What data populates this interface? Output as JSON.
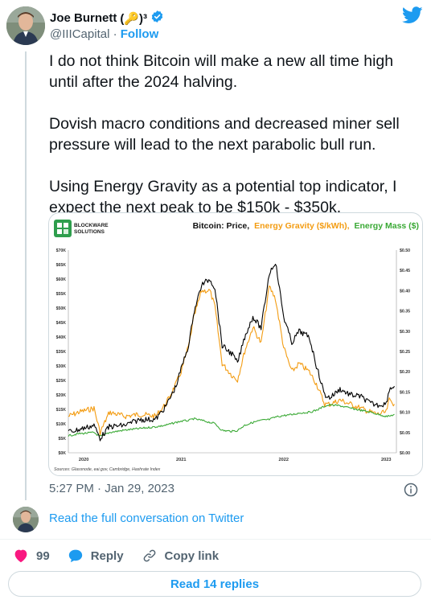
{
  "author": {
    "name": "Joe Burnett",
    "name_suffix": "(🔑)³",
    "handle": "@IIICapital",
    "separator": "·",
    "follow_label": "Follow"
  },
  "tweet": {
    "paragraphs": [
      "I do not think Bitcoin will make a new all time high until after the 2024 halving.",
      "Dovish macro conditions and decreased miner sell pressure will lead to the next parabolic bull run.",
      "Using Energy Gravity as a potential top indicator, I expect the next peak to be $150k - $350k."
    ],
    "timestamp": "5:27 PM · Jan 29, 2023"
  },
  "conversation": {
    "link_text": "Read the full conversation on Twitter"
  },
  "actions": {
    "like_count": "99",
    "reply_label": "Reply",
    "copy_label": "Copy link"
  },
  "read_replies_label": "Read 14 replies",
  "icons": {
    "verified": "verified-badge-icon",
    "brand": "twitter-bird-icon",
    "info": "info-icon",
    "like": "heart-icon",
    "reply": "speech-bubble-icon",
    "copy": "link-icon"
  },
  "colors": {
    "accent": "#1d9bf0",
    "like": "#f91880",
    "price_series": "#000000",
    "energy_gravity_series": "#f39c12",
    "energy_mass_series": "#3aa935",
    "logo_green": "#2e9e4d"
  },
  "chart_data": {
    "type": "line",
    "logo_lines": [
      "BLOCKWARE",
      "SOLUTIONS"
    ],
    "title_parts": [
      {
        "text": "Bitcoin: Price,",
        "color": "#111111"
      },
      {
        "text": "Energy Gravity ($/kWh),",
        "color": "#f39c12"
      },
      {
        "text": "Energy Mass ($)",
        "color": "#3aa935"
      }
    ],
    "y_left_ticks": [
      "$70K",
      "$65K",
      "$60K",
      "$55K",
      "$50K",
      "$45K",
      "$40K",
      "$35K",
      "$30K",
      "$25K",
      "$20K",
      "$15K",
      "$10K",
      "$5K",
      "$0K"
    ],
    "y_right_ticks": [
      "$0.50",
      "$0.45",
      "$0.40",
      "$0.35",
      "$0.30",
      "$0.25",
      "$0.20",
      "$0.15",
      "$0.10",
      "$0.05",
      "$0.00"
    ],
    "x_ticks": [
      "2020",
      "2021",
      "2022",
      "2023"
    ],
    "ylim_left": [
      0,
      70000
    ],
    "ylim_right": [
      0,
      0.5
    ],
    "source": "Sources: Glassnode, eai.gov, Cambridge, Hashrate Index",
    "series": [
      {
        "name": "Price",
        "axis": "left",
        "color": "#000000",
        "x": [
          2019.9,
          2020.0,
          2020.15,
          2020.21,
          2020.3,
          2020.45,
          2020.6,
          2020.75,
          2020.85,
          2020.95,
          2021.0,
          2021.08,
          2021.12,
          2021.2,
          2021.28,
          2021.33,
          2021.4,
          2021.5,
          2021.55,
          2021.62,
          2021.7,
          2021.78,
          2021.86,
          2021.92,
          2022.0,
          2022.08,
          2022.15,
          2022.25,
          2022.32,
          2022.4,
          2022.45,
          2022.55,
          2022.65,
          2022.75,
          2022.85,
          2022.92,
          2023.0,
          2023.03,
          2023.08
        ],
        "y": [
          7200,
          8000,
          9500,
          5000,
          9000,
          9500,
          11500,
          11500,
          16000,
          23000,
          29000,
          38000,
          48000,
          58000,
          60000,
          57000,
          37000,
          34000,
          31000,
          40000,
          47000,
          43000,
          62000,
          66000,
          47000,
          38000,
          42000,
          40000,
          30000,
          20000,
          19000,
          22000,
          20000,
          19500,
          17000,
          16500,
          17000,
          22000,
          23000
        ]
      },
      {
        "name": "Energy Gravity",
        "axis": "right",
        "color": "#f39c12",
        "x": [
          2019.9,
          2020.0,
          2020.15,
          2020.21,
          2020.3,
          2020.45,
          2020.6,
          2020.75,
          2020.85,
          2020.95,
          2021.0,
          2021.08,
          2021.12,
          2021.2,
          2021.28,
          2021.33,
          2021.4,
          2021.5,
          2021.55,
          2021.62,
          2021.7,
          2021.78,
          2021.86,
          2021.92,
          2022.0,
          2022.08,
          2022.15,
          2022.25,
          2022.32,
          2022.4,
          2022.45,
          2022.55,
          2022.65,
          2022.75,
          2022.85,
          2022.92,
          2023.0,
          2023.03,
          2023.08
        ],
        "y": [
          0.09,
          0.1,
          0.11,
          0.05,
          0.1,
          0.09,
          0.095,
          0.09,
          0.12,
          0.17,
          0.2,
          0.27,
          0.33,
          0.4,
          0.4,
          0.36,
          0.22,
          0.19,
          0.18,
          0.25,
          0.31,
          0.27,
          0.41,
          0.38,
          0.26,
          0.2,
          0.22,
          0.2,
          0.17,
          0.12,
          0.12,
          0.13,
          0.12,
          0.11,
          0.1,
          0.095,
          0.1,
          0.13,
          0.12
        ]
      },
      {
        "name": "Energy Mass",
        "axis": "right",
        "color": "#3aa935",
        "x": [
          2019.9,
          2020.0,
          2020.15,
          2020.21,
          2020.3,
          2020.45,
          2020.6,
          2020.75,
          2020.85,
          2020.95,
          2021.0,
          2021.08,
          2021.12,
          2021.2,
          2021.28,
          2021.33,
          2021.4,
          2021.5,
          2021.55,
          2021.62,
          2021.7,
          2021.78,
          2021.86,
          2021.92,
          2022.0,
          2022.08,
          2022.15,
          2022.25,
          2022.32,
          2022.4,
          2022.45,
          2022.55,
          2022.65,
          2022.75,
          2022.85,
          2022.92,
          2023.0,
          2023.03,
          2023.08
        ],
        "y": [
          0.042,
          0.047,
          0.05,
          0.04,
          0.05,
          0.056,
          0.06,
          0.064,
          0.068,
          0.075,
          0.078,
          0.08,
          0.084,
          0.08,
          0.075,
          0.072,
          0.055,
          0.053,
          0.055,
          0.068,
          0.075,
          0.08,
          0.082,
          0.088,
          0.092,
          0.094,
          0.098,
          0.1,
          0.105,
          0.115,
          0.118,
          0.116,
          0.11,
          0.105,
          0.1,
          0.095,
          0.09,
          0.09,
          0.095
        ]
      }
    ]
  }
}
